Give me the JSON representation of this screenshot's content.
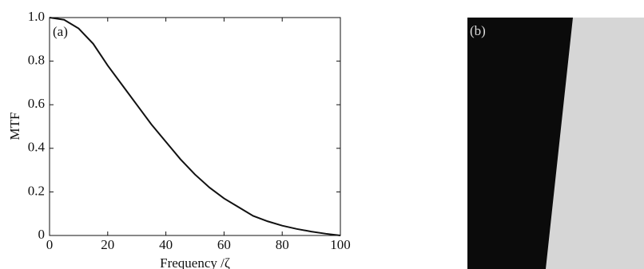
{
  "chart_data": {
    "type": "line",
    "panel_label": "(a)",
    "xlabel": "Frequency /ζ",
    "ylabel": "MTF",
    "x": [
      0,
      5,
      10,
      15,
      20,
      25,
      30,
      35,
      40,
      45,
      50,
      55,
      60,
      65,
      70,
      75,
      80,
      85,
      90,
      95,
      100
    ],
    "series": [
      {
        "name": "MTF",
        "color": "#111111",
        "values": [
          1.0,
          0.99,
          0.95,
          0.88,
          0.78,
          0.69,
          0.6,
          0.51,
          0.43,
          0.35,
          0.28,
          0.22,
          0.17,
          0.13,
          0.09,
          0.065,
          0.045,
          0.03,
          0.018,
          0.008,
          0.0
        ]
      }
    ],
    "xlim": [
      0,
      100
    ],
    "ylim": [
      0,
      1
    ],
    "xticks": [
      0,
      20,
      40,
      60,
      80,
      100
    ],
    "yticks": [
      0,
      0.2,
      0.4,
      0.6,
      0.8,
      {
        "value": 1,
        "label": "1.0"
      }
    ],
    "grid": false
  },
  "panel_b": {
    "label": "(b)"
  }
}
